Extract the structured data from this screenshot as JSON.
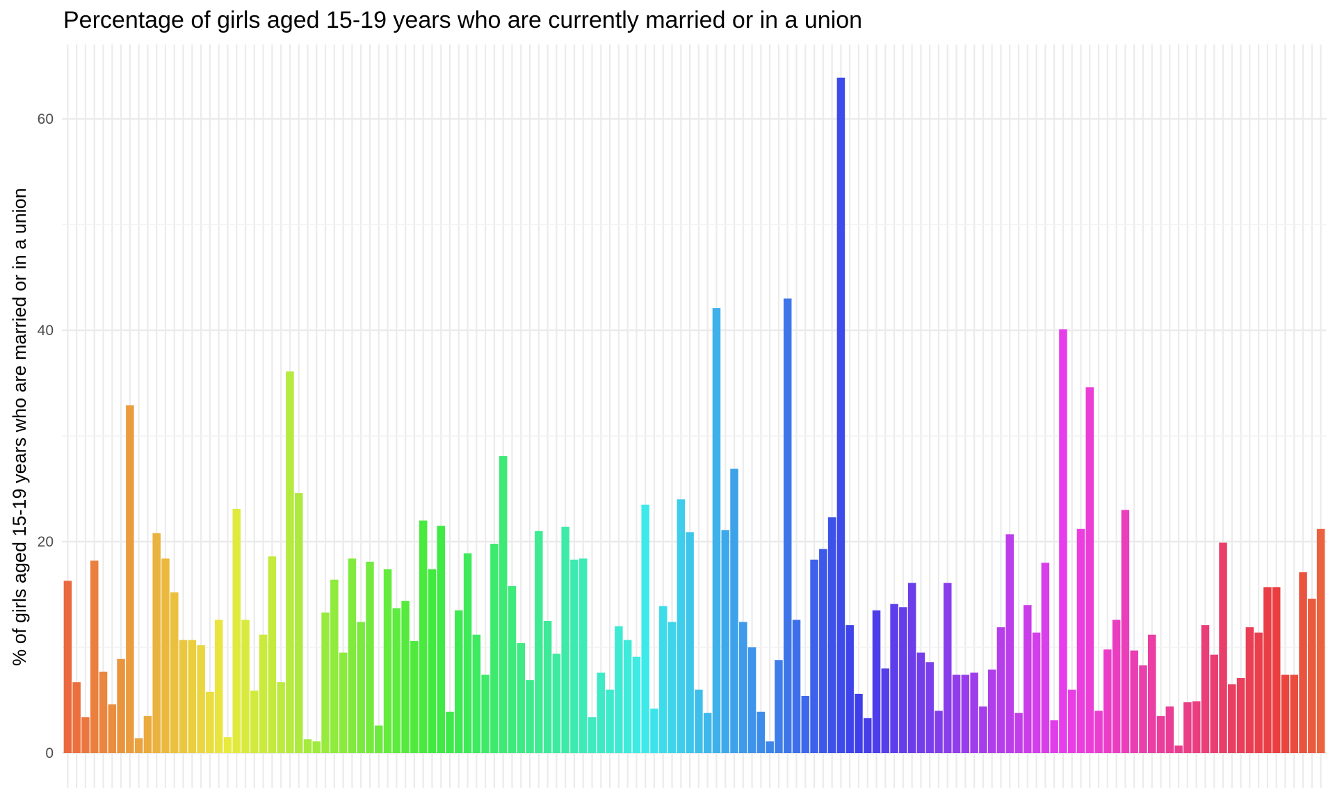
{
  "chart_data": {
    "type": "bar",
    "title": "Percentage of girls aged 15-19 years who are currently married or in a union",
    "xlabel": "",
    "ylabel": "% of girls aged 15-19 years who are married or in a union",
    "ylim": [
      0,
      67
    ],
    "y_ticks": [
      0,
      20,
      40,
      60
    ],
    "grid": true,
    "legend": "none",
    "color_scheme": "hue gradient across categories (red-orange to green to blue to magenta to pink)",
    "values": [
      16.3,
      6.7,
      3.4,
      18.2,
      7.7,
      4.6,
      8.9,
      32.9,
      1.4,
      3.5,
      20.8,
      18.4,
      15.2,
      10.7,
      10.7,
      10.2,
      5.8,
      12.6,
      1.5,
      23.1,
      12.6,
      5.9,
      11.2,
      18.6,
      6.7,
      36.1,
      24.6,
      1.3,
      1.1,
      13.3,
      16.4,
      9.5,
      18.4,
      12.4,
      18.1,
      2.6,
      17.4,
      13.7,
      14.4,
      10.6,
      22.0,
      17.4,
      21.5,
      3.9,
      13.5,
      18.9,
      11.2,
      7.4,
      19.8,
      28.1,
      15.8,
      10.4,
      6.9,
      21.0,
      12.5,
      9.4,
      21.4,
      18.3,
      18.4,
      3.4,
      7.6,
      6.0,
      12.0,
      10.7,
      9.1,
      23.5,
      4.2,
      13.9,
      12.4,
      24.0,
      20.9,
      6.0,
      3.8,
      42.1,
      21.1,
      26.9,
      12.4,
      10.0,
      3.9,
      1.1,
      8.8,
      43.0,
      12.6,
      5.4,
      18.3,
      19.3,
      22.3,
      63.9,
      12.1,
      5.6,
      3.3,
      13.5,
      8.0,
      14.1,
      13.8,
      16.1,
      9.5,
      8.6,
      4.0,
      16.1,
      7.4,
      7.4,
      7.6,
      4.4,
      7.9,
      11.9,
      20.7,
      3.8,
      14.0,
      11.4,
      18.0,
      3.1,
      40.1,
      6.0,
      21.2,
      34.6,
      4.0,
      9.8,
      12.6,
      23.0,
      9.7,
      8.3,
      11.2,
      3.5,
      4.4,
      0.7,
      4.8,
      4.9,
      12.1,
      9.3,
      19.9,
      6.5,
      7.1,
      11.9,
      11.4,
      15.7,
      15.7,
      7.4,
      7.4,
      17.1,
      14.6,
      21.2
    ]
  }
}
